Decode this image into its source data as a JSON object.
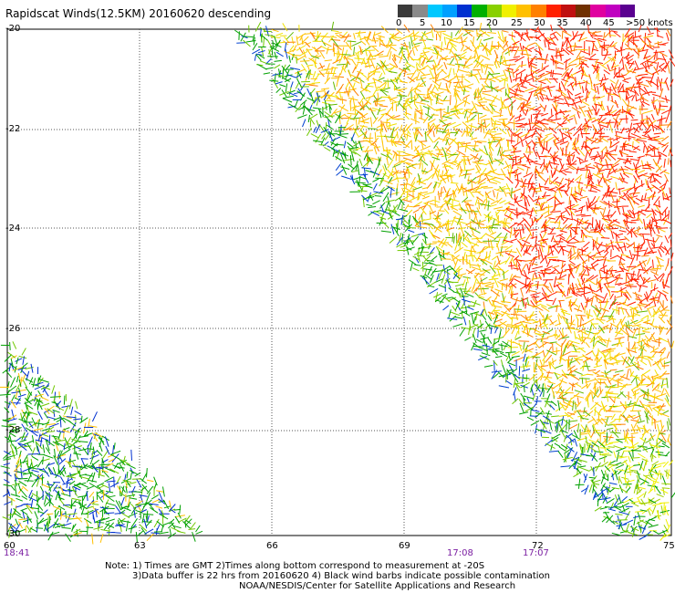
{
  "title": "Rapidscat Winds(12.5KM) 20160620 descending",
  "colorbar": {
    "colors": [
      "#3a3a3a",
      "#8a8a8a",
      "#00c8ff",
      "#00a0ff",
      "#0030d0",
      "#00b000",
      "#88d000",
      "#f0f000",
      "#ffc000",
      "#ff8000",
      "#ff2000",
      "#c01010",
      "#703000",
      "#e000a0",
      "#c000c0",
      "#5a0090"
    ],
    "labels": [
      "0",
      "5",
      "10",
      "15",
      "20",
      "25",
      "30",
      "35",
      "40",
      "45",
      ">50 knots"
    ]
  },
  "y_labels": [
    "-20",
    "-22",
    "-24",
    "-26",
    "-28",
    "-30"
  ],
  "x_labels": [
    "60",
    "63",
    "66",
    "69",
    "72",
    "75"
  ],
  "time_labels": [
    "18:41",
    "17:08",
    "17:07"
  ],
  "notes": {
    "line1": "Note: 1) Times are GMT 2)Times along bottom correspond to measurement at -20S",
    "line2": "3)Data buffer is 22 hrs from 20160620 4) Black wind barbs indicate possible contamination",
    "line3": "NOAA/NESDIS/Center for Satellite Applications and Research"
  }
}
